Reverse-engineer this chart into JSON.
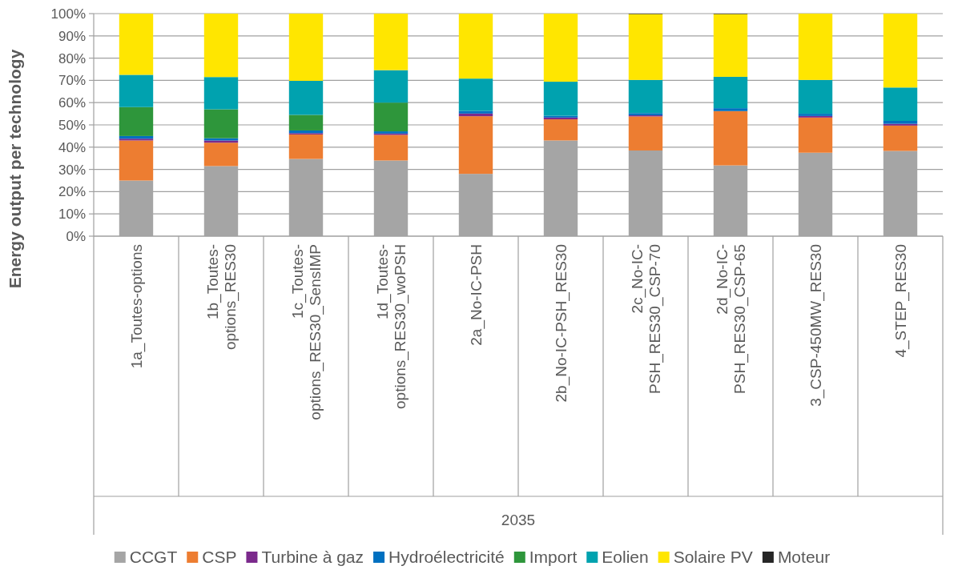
{
  "chart_data": {
    "type": "bar",
    "stacked": true,
    "ylabel": "Energy output per technology",
    "annotations": [
      "2035"
    ],
    "categories": [
      "1a_Toutes-options",
      "1b_Toutes-options_RES30",
      "1c_Toutes-options_RES30_SensIMP",
      "1d_Toutes-options_RES30_woPSH",
      "2a_No-IC-PSH",
      "2b_No-IC-PSH_RES30",
      "2c_No-IC-PSH_RES30_CSP-70",
      "2d_No-IC-PSH_RES30_CSP-65",
      "3_CSP-450MW_RES30",
      "4_STEP_RES30"
    ],
    "series": [
      {
        "name": "CCGT",
        "color": "#a5a5a5",
        "values": [
          25,
          31.5,
          34.7,
          34,
          28,
          43,
          38.5,
          31.8,
          37.5,
          38.3
        ]
      },
      {
        "name": "CSP",
        "color": "#ed7d31",
        "values": [
          18,
          10.5,
          11,
          11.5,
          25.9,
          9.5,
          15.3,
          24.4,
          15.8,
          11.4
        ]
      },
      {
        "name": "Turbine à gaz",
        "color": "#7b2a8c",
        "values": [
          0.8,
          1,
          0.6,
          0.6,
          1.2,
          0.8,
          0.5,
          null,
          0.7,
          0.8
        ]
      },
      {
        "name": "Hydroélectricité",
        "color": "#0070c0",
        "values": [
          1.2,
          1,
          1.2,
          1,
          1.2,
          0.8,
          1,
          1.3,
          1,
          1.3
        ]
      },
      {
        "name": "Import",
        "color": "#2e963b",
        "values": [
          13,
          13,
          7,
          12.9,
          0,
          0,
          0,
          0,
          0,
          0
        ]
      },
      {
        "name": "Eolien",
        "color": "#00a2af",
        "values": [
          14.5,
          14.5,
          15.3,
          14.6,
          14.5,
          15.3,
          14.9,
          14.1,
          15.2,
          15
        ]
      },
      {
        "name": "Solaire PV",
        "color": "#ffe600",
        "values": [
          27.5,
          28.5,
          30.2,
          25.4,
          29.2,
          30.6,
          29.6,
          28.2,
          29.8,
          33.2
        ]
      },
      {
        "name": "Moteur",
        "color": "#262626",
        "values": [
          0,
          0,
          0,
          0,
          0,
          0,
          0.2,
          0.2,
          0,
          0
        ]
      }
    ],
    "ylim": [
      0,
      100
    ],
    "yticks": [
      {
        "value": 0,
        "label": "0%"
      },
      {
        "value": 10,
        "label": "10%"
      },
      {
        "value": 20,
        "label": "20%"
      },
      {
        "value": 30,
        "label": "30%"
      },
      {
        "value": 40,
        "label": "40%"
      },
      {
        "value": 50,
        "label": "50%"
      },
      {
        "value": 60,
        "label": "60%"
      },
      {
        "value": 70,
        "label": "70%"
      },
      {
        "value": 80,
        "label": "80%"
      },
      {
        "value": 90,
        "label": "90%"
      },
      {
        "value": 100,
        "label": "100%"
      }
    ],
    "grid": "y",
    "legend": "bottom"
  }
}
